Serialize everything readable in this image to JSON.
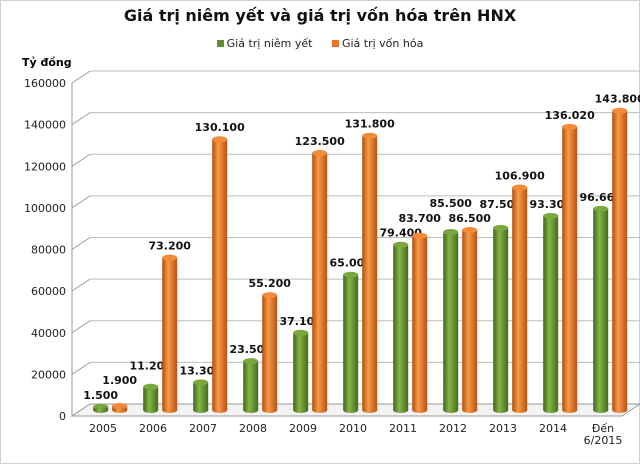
{
  "chart_data": {
    "type": "bar",
    "title": "Giá trị niêm yết và giá trị vốn hóa trên HNX",
    "ylabel": "Tỷ đồng",
    "xlabel": "",
    "ylim": [
      0,
      160000
    ],
    "yticks": [
      0,
      20000,
      40000,
      60000,
      80000,
      100000,
      120000,
      140000,
      160000
    ],
    "grid": true,
    "legend_position": "top-center",
    "categories": [
      "2005",
      "2006",
      "2007",
      "2008",
      "2009",
      "2010",
      "2011",
      "2012",
      "2013",
      "2014",
      "Đến 6/2015"
    ],
    "series": [
      {
        "name": "Giá trị niêm yết",
        "color": "#5f8f2c",
        "values": [
          1500,
          11200,
          13300,
          23500,
          37100,
          65000,
          79400,
          85500,
          87500,
          93300,
          96660
        ]
      },
      {
        "name": "Giá trị vốn hóa",
        "color": "#ea741f",
        "values": [
          1900,
          73200,
          130100,
          55200,
          123500,
          131800,
          83700,
          86500,
          106900,
          136020,
          143800
        ]
      }
    ]
  }
}
